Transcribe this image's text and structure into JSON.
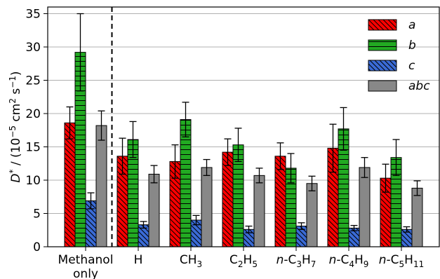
{
  "chart_data": {
    "type": "bar",
    "categories": [
      {
        "id": "methanol",
        "lines": [
          "Methanol",
          "only"
        ]
      },
      {
        "id": "h",
        "html": "H"
      },
      {
        "id": "ch3",
        "html": "CH<tspan dy='5' font-size='12'>3</tspan>"
      },
      {
        "id": "c2h5",
        "html": "C<tspan dy='5' font-size='12'>2</tspan><tspan dy='-5'>H</tspan><tspan dy='5' font-size='12'>5</tspan>"
      },
      {
        "id": "nc3h7",
        "html": "<tspan font-style='italic'>n</tspan>-C<tspan dy='5' font-size='12'>3</tspan><tspan dy='-5'>H</tspan><tspan dy='5' font-size='12'>7</tspan>"
      },
      {
        "id": "nc4h9",
        "html": "<tspan font-style='italic'>n</tspan>-C<tspan dy='5' font-size='12'>4</tspan><tspan dy='-5'>H</tspan><tspan dy='5' font-size='12'>9</tspan>"
      },
      {
        "id": "nc5h11",
        "html": "<tspan font-style='italic'>n</tspan>-C<tspan dy='5' font-size='12'>5</tspan><tspan dy='-5'>H</tspan><tspan dy='5' font-size='12'>11</tspan>"
      }
    ],
    "series": [
      {
        "name": "a",
        "color": "#ff0000",
        "hatch": "diag",
        "values": [
          18.6,
          13.6,
          12.8,
          14.2,
          13.6,
          14.8,
          10.3
        ],
        "errors": [
          2.4,
          2.7,
          2.5,
          2.0,
          2.0,
          3.6,
          2.1
        ]
      },
      {
        "name": "b",
        "color": "#22aa22",
        "hatch": "horiz",
        "values": [
          29.2,
          16.1,
          19.1,
          15.3,
          11.8,
          17.7,
          13.4
        ],
        "errors": [
          5.8,
          2.7,
          2.6,
          2.5,
          2.2,
          3.2,
          2.7
        ]
      },
      {
        "name": "c",
        "color": "#3a6bd6",
        "hatch": "diag",
        "values": [
          6.9,
          3.3,
          4.0,
          2.6,
          3.1,
          2.8,
          2.6
        ],
        "errors": [
          1.2,
          0.5,
          0.7,
          0.5,
          0.5,
          0.4,
          0.4
        ]
      },
      {
        "name": "abc",
        "color": "#888888",
        "hatch": "none",
        "values": [
          18.2,
          10.9,
          11.9,
          10.7,
          9.5,
          11.9,
          8.8
        ],
        "errors": [
          2.2,
          1.3,
          1.2,
          1.1,
          1.1,
          1.5,
          1.1
        ]
      }
    ],
    "ylim": [
      0,
      36
    ],
    "yticks": [
      0,
      5,
      10,
      15,
      20,
      25,
      30,
      35
    ],
    "ylabel": "D* / (10⁻⁵ cm² s⁻¹)",
    "grid": "horizontal",
    "separator_after_category": 0,
    "legend": "top-right"
  }
}
